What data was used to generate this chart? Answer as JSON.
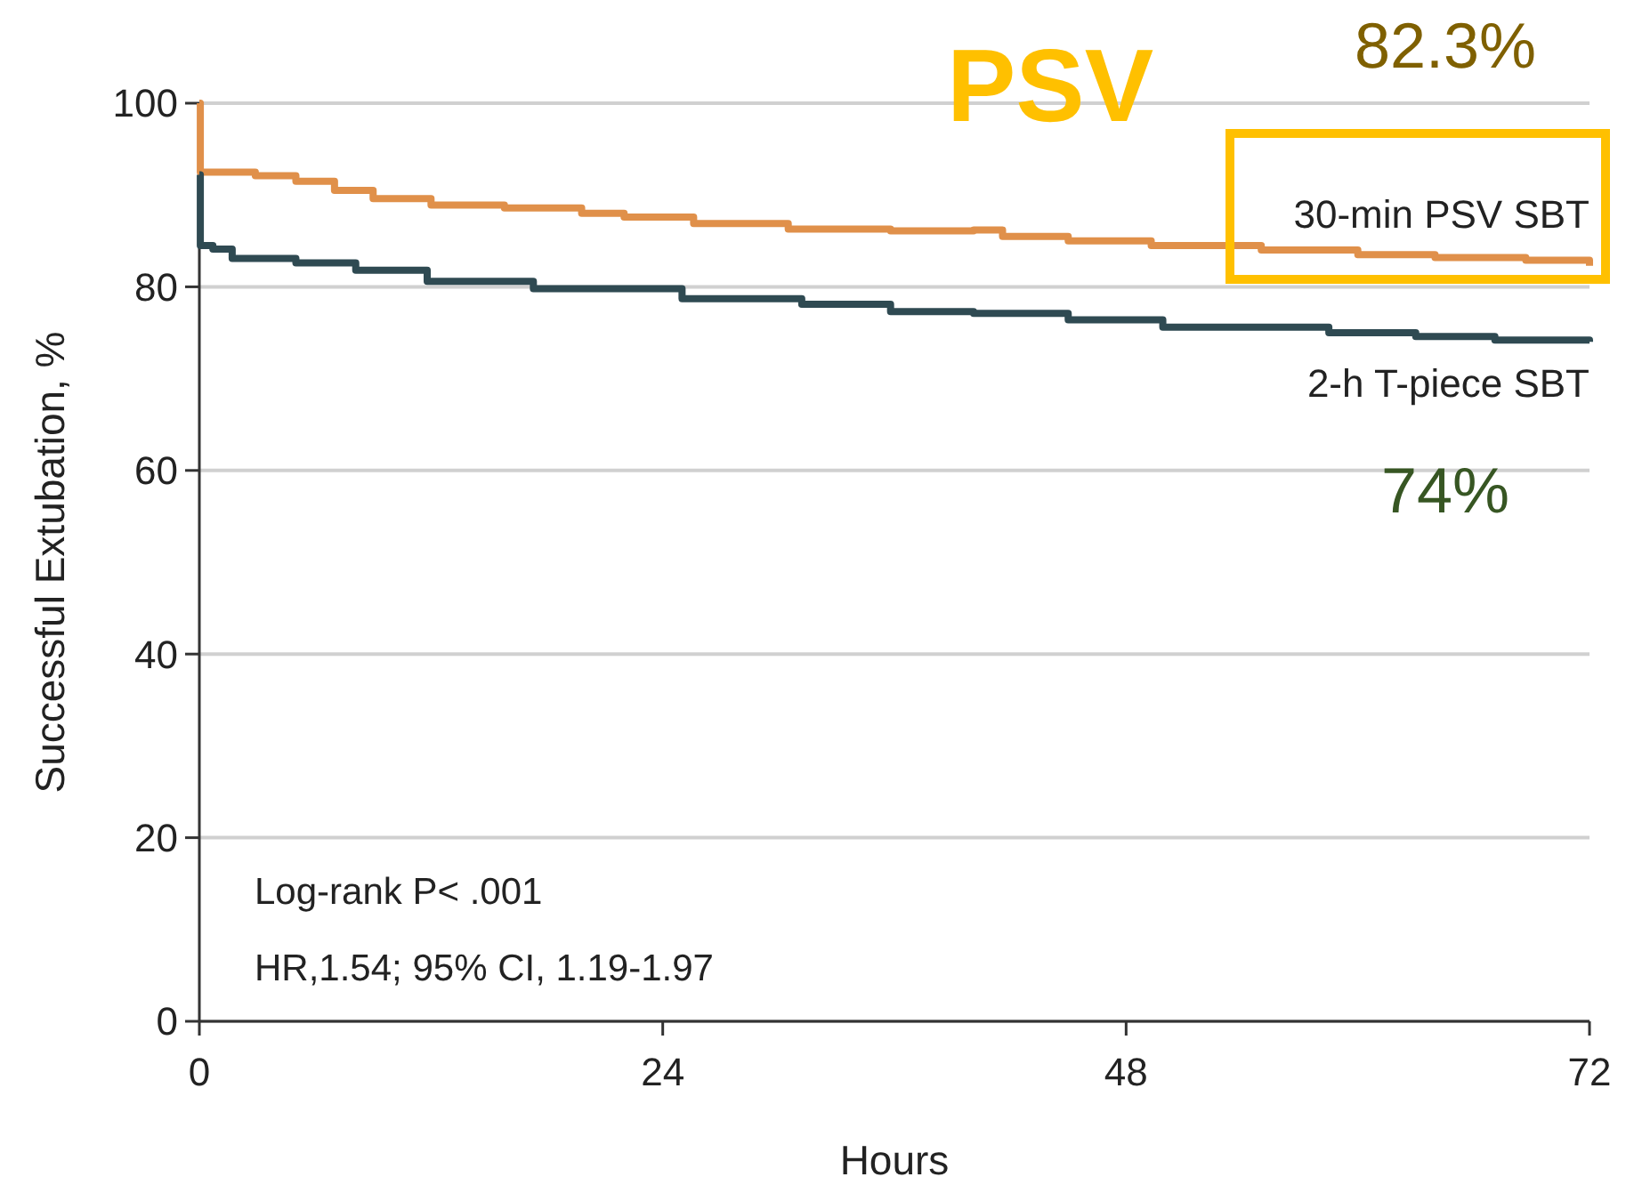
{
  "chart_data": {
    "type": "step",
    "xlabel": "Hours",
    "ylabel": "Successful Extubation, %",
    "xlim": [
      0,
      72
    ],
    "ylim": [
      0,
      100
    ],
    "xticks": [
      0,
      24,
      48,
      72
    ],
    "yticks": [
      0,
      20,
      40,
      60,
      80,
      100
    ],
    "grid": "y",
    "series": [
      {
        "name": "30-min PSV SBT",
        "color": "#e0904a",
        "x": [
          0,
          0.05,
          2.9,
          5,
          7,
          9,
          12,
          15.8,
          19.8,
          22,
          25.6,
          30.5,
          35.8,
          40.1,
          41.6,
          45,
          49.3,
          55,
          60,
          64,
          68.7,
          72
        ],
        "values": [
          100,
          92.5,
          92.1,
          91.5,
          90.5,
          89.6,
          88.9,
          88.6,
          88.0,
          87.6,
          86.9,
          86.3,
          86.1,
          86.2,
          85.5,
          85.0,
          84.5,
          84.0,
          83.5,
          83.2,
          82.9,
          82.3
        ]
      },
      {
        "name": "2-h T-piece SBT",
        "color": "#2f4a52",
        "x": [
          0,
          0.05,
          0.7,
          1.7,
          5,
          8.1,
          11.8,
          17.3,
          25,
          31.2,
          35.8,
          40.1,
          45,
          49.9,
          58.5,
          63,
          67.1,
          72
        ],
        "values": [
          92.2,
          84.5,
          84.1,
          83.1,
          82.6,
          81.8,
          80.6,
          79.8,
          78.7,
          78.1,
          77.3,
          77.1,
          76.4,
          75.6,
          75.0,
          74.6,
          74.2,
          74.0
        ]
      }
    ],
    "annotations": [
      "PSV",
      "82.3%",
      "74%",
      "Log-rank P< .001",
      "HR,1.54; 95% CI, 1.19-1.97"
    ]
  }
}
